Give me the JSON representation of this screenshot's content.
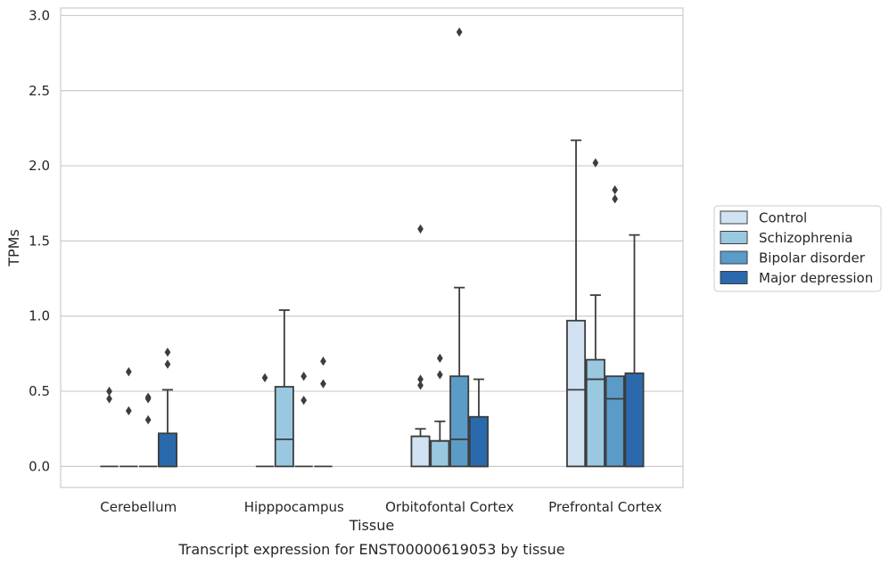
{
  "caption": "Transcript expression for ENST00000619053 by tissue",
  "chart_data": {
    "type": "box",
    "xlabel": "Tissue",
    "ylabel": "TPMs",
    "ylim": [
      -0.14,
      3.05
    ],
    "yticks": [
      "0.0",
      "0.5",
      "1.0",
      "1.5",
      "2.0",
      "2.5",
      "3.0"
    ],
    "ytick_values": [
      0,
      0.5,
      1.0,
      1.5,
      2.0,
      2.5,
      3.0
    ],
    "grid": true,
    "legend_position": "right",
    "categories": [
      "Cerebellum",
      "Hipppocampus",
      "Orbitofontal Cortex",
      "Prefrontal Cortex"
    ],
    "series": [
      {
        "name": "Control",
        "color": "#d1e2f2",
        "boxes": [
          {
            "q1": 0,
            "median": 0,
            "q3": 0,
            "whisker_low": 0,
            "whisker_high": 0,
            "outliers": [
              0.45,
              0.5
            ]
          },
          {
            "q1": 0,
            "median": 0,
            "q3": 0,
            "whisker_low": 0,
            "whisker_high": 0,
            "outliers": [
              0.59
            ]
          },
          {
            "q1": 0,
            "median": 0.2,
            "q3": 0.2,
            "whisker_low": 0,
            "whisker_high": 0.25,
            "outliers": [
              0.54,
              0.58,
              1.58
            ]
          },
          {
            "q1": 0,
            "median": 0.51,
            "q3": 0.97,
            "whisker_low": 0,
            "whisker_high": 2.17,
            "outliers": []
          }
        ]
      },
      {
        "name": "Schizophrenia",
        "color": "#9ac8e0",
        "boxes": [
          {
            "q1": 0,
            "median": 0,
            "q3": 0,
            "whisker_low": 0,
            "whisker_high": 0,
            "outliers": [
              0.37,
              0.63
            ]
          },
          {
            "q1": 0,
            "median": 0.18,
            "q3": 0.53,
            "whisker_low": 0,
            "whisker_high": 1.04,
            "outliers": []
          },
          {
            "q1": 0,
            "median": 0.17,
            "q3": 0.17,
            "whisker_low": 0,
            "whisker_high": 0.3,
            "outliers": [
              0.61,
              0.72
            ]
          },
          {
            "q1": 0,
            "median": 0.58,
            "q3": 0.71,
            "whisker_low": 0,
            "whisker_high": 1.14,
            "outliers": [
              2.02
            ]
          }
        ]
      },
      {
        "name": "Bipolar disorder",
        "color": "#5b9bc8",
        "boxes": [
          {
            "q1": 0,
            "median": 0,
            "q3": 0,
            "whisker_low": 0,
            "whisker_high": 0,
            "outliers": [
              0.31,
              0.45,
              0.46
            ]
          },
          {
            "q1": 0,
            "median": 0,
            "q3": 0,
            "whisker_low": 0,
            "whisker_high": 0,
            "outliers": [
              0.44,
              0.6
            ]
          },
          {
            "q1": 0,
            "median": 0.18,
            "q3": 0.6,
            "whisker_low": 0,
            "whisker_high": 1.19,
            "outliers": [
              2.89
            ]
          },
          {
            "q1": 0,
            "median": 0.45,
            "q3": 0.6,
            "whisker_low": 0,
            "whisker_high": 0.6,
            "outliers": [
              1.78,
              1.84
            ]
          }
        ]
      },
      {
        "name": "Major depression",
        "color": "#2a6aac",
        "boxes": [
          {
            "q1": 0,
            "median": 0,
            "q3": 0.22,
            "whisker_low": 0,
            "whisker_high": 0.51,
            "outliers": [
              0.68,
              0.76
            ]
          },
          {
            "q1": 0,
            "median": 0,
            "q3": 0,
            "whisker_low": 0,
            "whisker_high": 0,
            "outliers": [
              0.55,
              0.7
            ]
          },
          {
            "q1": 0,
            "median": 0,
            "q3": 0.33,
            "whisker_low": 0,
            "whisker_high": 0.58,
            "outliers": []
          },
          {
            "q1": 0,
            "median": 0,
            "q3": 0.62,
            "whisker_low": 0,
            "whisker_high": 1.54,
            "outliers": []
          }
        ]
      }
    ]
  }
}
